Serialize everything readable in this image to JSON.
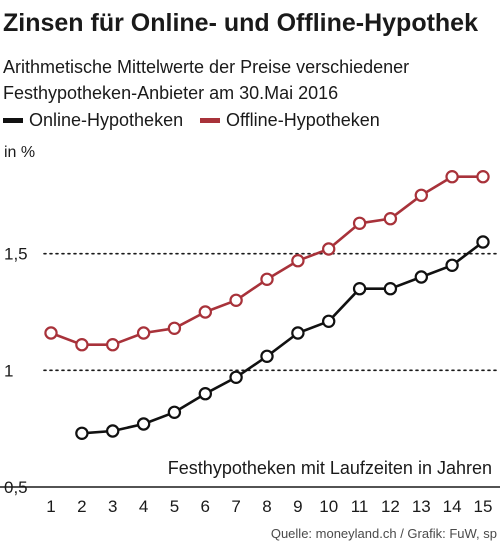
{
  "chart_data": {
    "type": "line",
    "title": "Zinsen für Online- und Offline-Hypothek",
    "subtitle_lines": [
      "Arithmetische Mittelwerte der Preise verschiedener",
      "Festhypotheken-Anbieter am 30.Mai 2016"
    ],
    "unit_label": "in %",
    "xlabel": "Festhypotheken mit Laufzeiten in Jahren",
    "x": [
      1,
      2,
      3,
      4,
      5,
      6,
      7,
      8,
      9,
      10,
      11,
      12,
      13,
      14,
      15
    ],
    "x_tick_labels": [
      "1",
      "2",
      "3",
      "4",
      "5",
      "6",
      "7",
      "8",
      "9",
      "10",
      "11",
      "12",
      "13",
      "14",
      "15"
    ],
    "y_ticks": [
      0.5,
      1,
      1.5
    ],
    "y_tick_labels": [
      "0,5",
      "1",
      "1,5"
    ],
    "ylim": [
      0.5,
      2.0
    ],
    "grid": "horizontal dotted",
    "legend_placement": "top-left",
    "series": [
      {
        "name": "Online-Hypotheken",
        "color": "#111111",
        "values": [
          null,
          0.73,
          0.74,
          0.77,
          0.82,
          0.9,
          0.97,
          1.06,
          1.16,
          1.21,
          1.35,
          1.35,
          1.4,
          1.45,
          1.55
        ]
      },
      {
        "name": "Offline-Hypotheken",
        "color": "#a8323a",
        "values": [
          1.16,
          1.11,
          1.11,
          1.16,
          1.18,
          1.25,
          1.3,
          1.39,
          1.47,
          1.52,
          1.63,
          1.65,
          1.75,
          1.83,
          1.83
        ]
      }
    ],
    "source_note": "Quelle: moneyland.ch / Grafik: FuW, sp"
  }
}
